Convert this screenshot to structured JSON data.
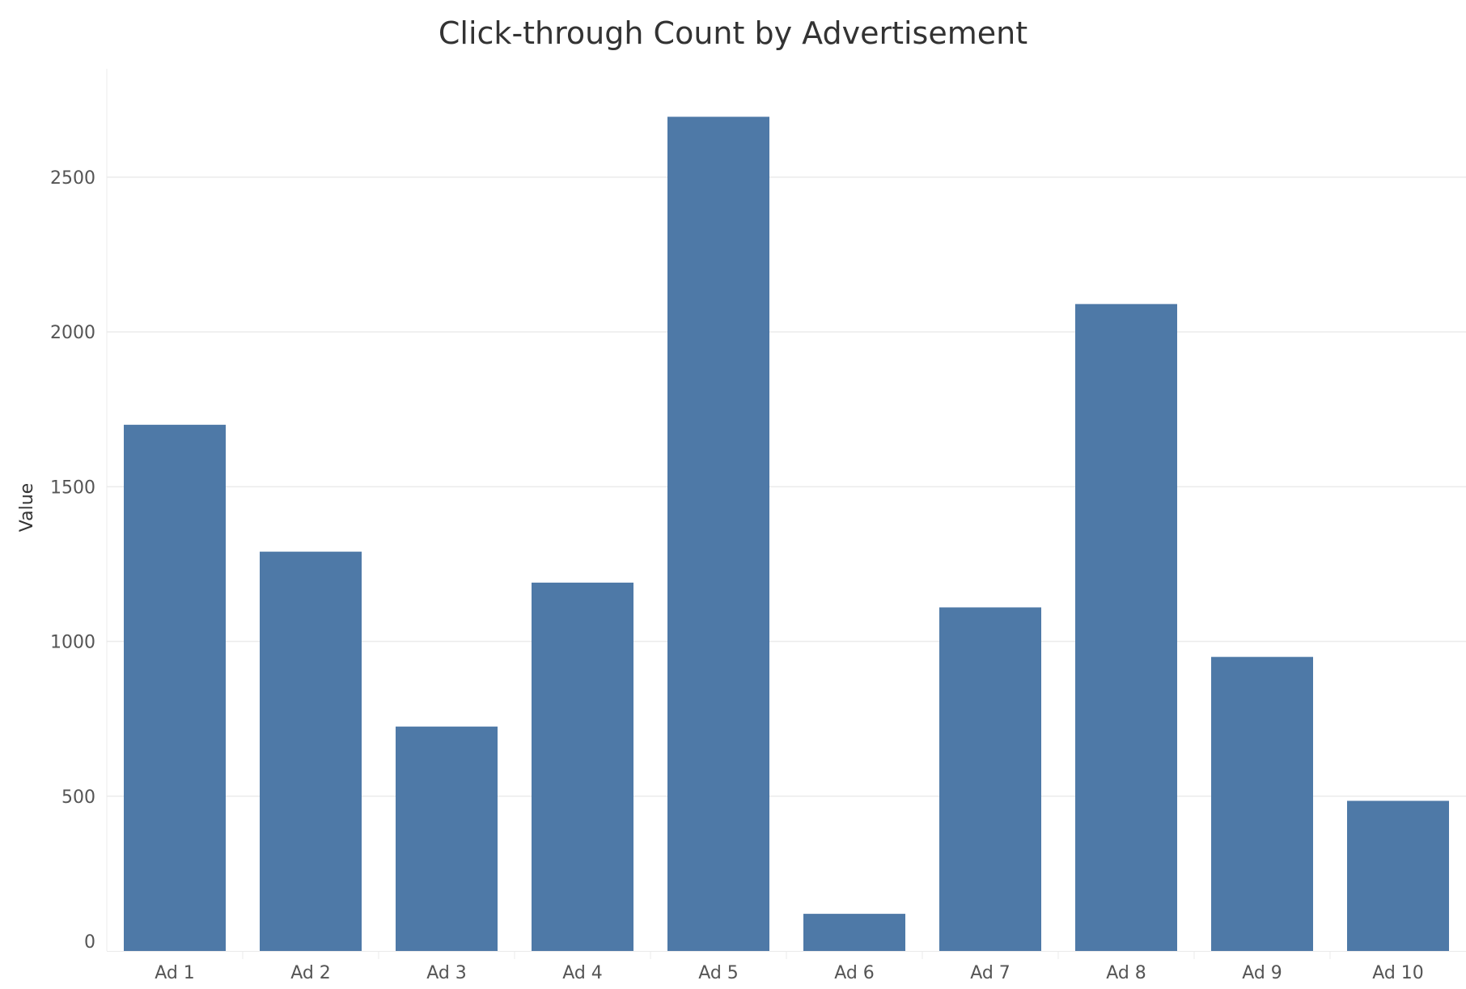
{
  "chart_data": {
    "type": "bar",
    "title": "Click-through Count by Advertisement",
    "xlabel": "",
    "ylabel": "Value",
    "categories": [
      "Ad 1",
      "Ad 2",
      "Ad 3",
      "Ad 4",
      "Ad 5",
      "Ad 6",
      "Ad 7",
      "Ad 8",
      "Ad 9",
      "Ad 10"
    ],
    "values": [
      1700,
      1290,
      725,
      1190,
      2695,
      120,
      1110,
      2090,
      950,
      485
    ],
    "ylim": [
      0,
      2850
    ],
    "yticks": [
      0,
      500,
      1000,
      1500,
      2000,
      2500
    ],
    "grid": true,
    "legend": "none",
    "bar_color": "#4e79a7",
    "grid_color": "#ebebeb",
    "text_color": "#555555",
    "title_color": "#333333"
  }
}
